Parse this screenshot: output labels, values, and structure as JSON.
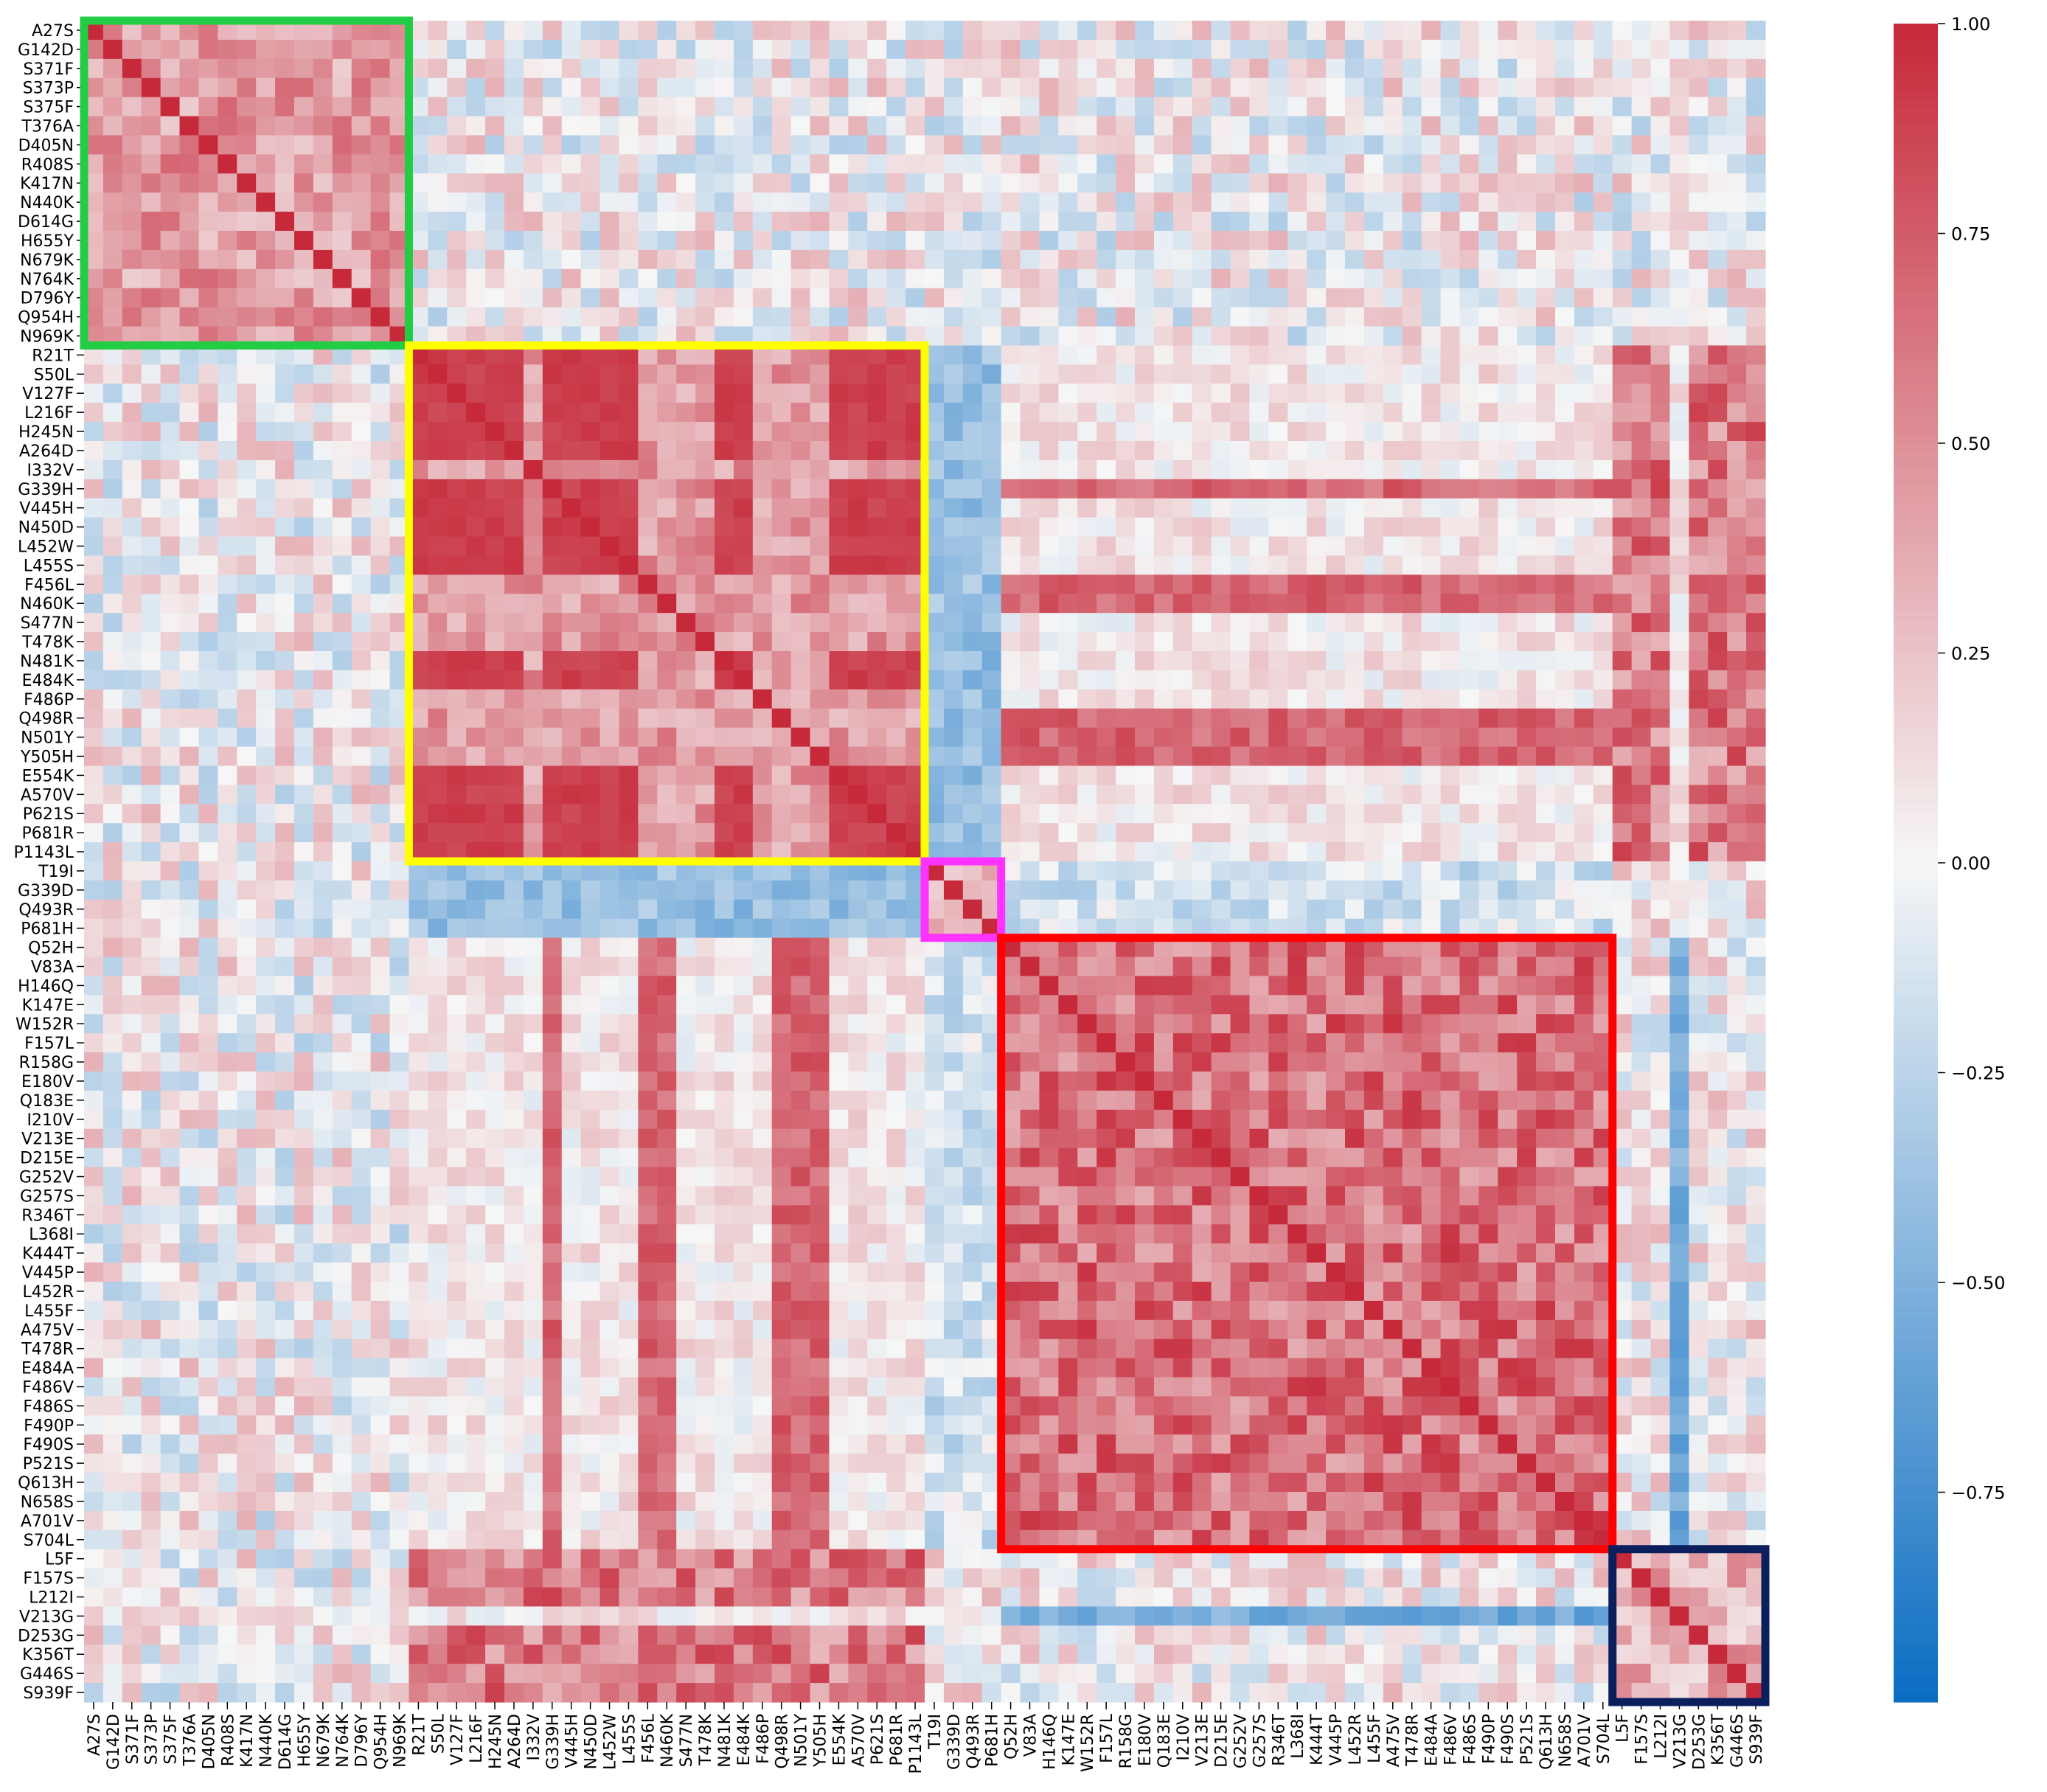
{
  "chart_data": {
    "type": "heatmap",
    "title": "",
    "xlabel": "",
    "ylabel": "",
    "labels": [
      "A27S",
      "G142D",
      "S371F",
      "S373P",
      "S375F",
      "T376A",
      "D405N",
      "R408S",
      "K417N",
      "N440K",
      "D614G",
      "H655Y",
      "N679K",
      "N764K",
      "D796Y",
      "Q954H",
      "N969K",
      "R21T",
      "S50L",
      "V127F",
      "L216F",
      "H245N",
      "A264D",
      "I332V",
      "G339H",
      "V445H",
      "N450D",
      "L452W",
      "L455S",
      "F456L",
      "N460K",
      "S477N",
      "T478K",
      "N481K",
      "E484K",
      "F486P",
      "Q498R",
      "N501Y",
      "Y505H",
      "E554K",
      "A570V",
      "P621S",
      "P681R",
      "P1143L",
      "T19I",
      "G339D",
      "Q493R",
      "P681H",
      "Q52H",
      "V83A",
      "H146Q",
      "K147E",
      "W152R",
      "F157L",
      "R158G",
      "E180V",
      "Q183E",
      "I210V",
      "V213E",
      "D215E",
      "G252V",
      "G257S",
      "R346T",
      "L368I",
      "K444T",
      "V445P",
      "L452R",
      "L455F",
      "A475V",
      "T478R",
      "E484A",
      "F486V",
      "F486S",
      "F490P",
      "F490S",
      "P521S",
      "Q613H",
      "N658S",
      "A701V",
      "S704L",
      "L5F",
      "F157S",
      "L212I",
      "V213G",
      "D253G",
      "K356T",
      "G446S",
      "S939F"
    ],
    "colorbar": {
      "vmin": -1.0,
      "vmax": 1.0,
      "ticks": [
        "1.00",
        "0.75",
        "0.50",
        "0.25",
        "0.00",
        "−0.25",
        "−0.50",
        "−0.75"
      ],
      "tick_values": [
        1.0,
        0.75,
        0.5,
        0.25,
        0.0,
        -0.25,
        -0.5,
        -0.75
      ],
      "colormap": [
        "#0a6dc2",
        "#f6f6f6",
        "#c6293a"
      ]
    },
    "blocks": [
      {
        "color": "#22cc44",
        "rows": [
          0,
          16
        ]
      },
      {
        "color": "#ffff00",
        "rows": [
          17,
          43
        ]
      },
      {
        "color": "#ff33ff",
        "rows": [
          44,
          47
        ]
      },
      {
        "color": "#ff0000",
        "rows": [
          48,
          79
        ]
      },
      {
        "color": "#0b1f5c",
        "rows": [
          80,
          87
        ]
      }
    ],
    "block_pattern_values": {
      "in_block": 0.78,
      "block_b_core": 0.95,
      "block_b_weak_rows": [
        23,
        29,
        30,
        31,
        32,
        35,
        36,
        37,
        38
      ],
      "block_b_weak": 0.25,
      "block_c_vs_b": -0.55,
      "block_d_vs_b": 0.15,
      "block_d_strong_rows": [
        24,
        29,
        30,
        36,
        37,
        38
      ],
      "block_d_strong": 0.55,
      "block_e_col_v213g": -0.7,
      "diagonal": 1.0
    }
  }
}
